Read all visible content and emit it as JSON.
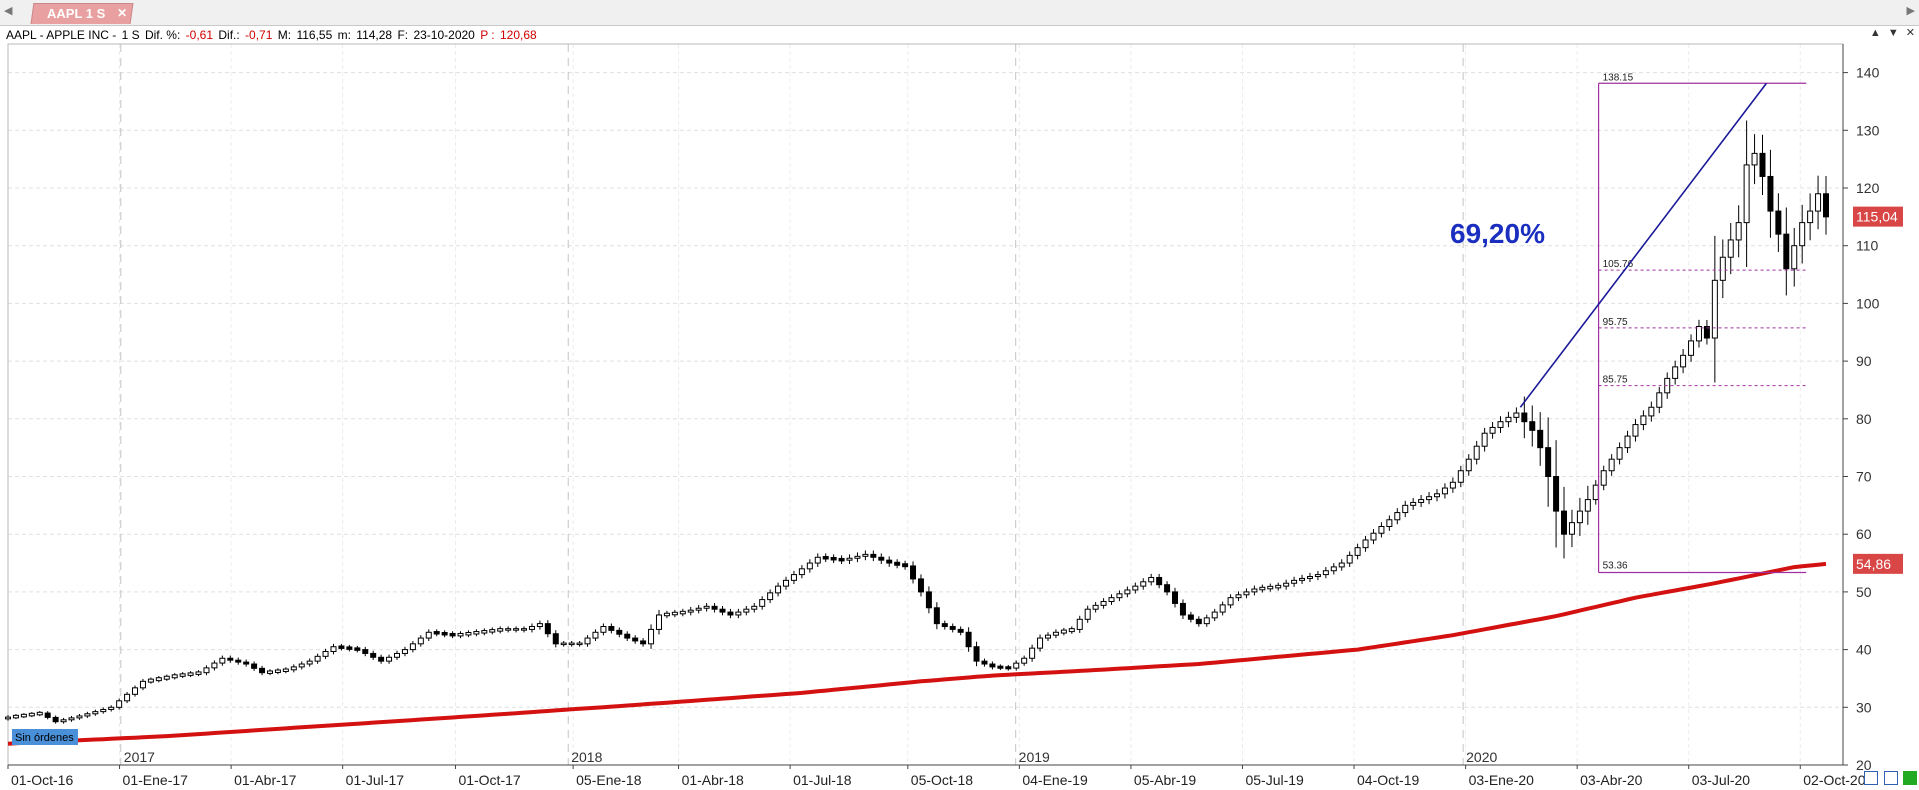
{
  "tab": {
    "label": "AAPL 1 S",
    "close": "✕"
  },
  "nav": {
    "left": "◀",
    "right": "▶"
  },
  "info": {
    "symbol": "AAPL - APPLE INC -",
    "interval": "1 S",
    "pct_label": "Dif. %:",
    "pct_value": "-0,61",
    "dif_label": "Dif.:",
    "dif_value": "-0,71",
    "max_label": "M:",
    "max_value": "116,55",
    "min_label": "m:",
    "min_value": "114,28",
    "date_label": "F:",
    "date_value": "23-10-2020",
    "price_label": "P :",
    "price_value": "120,68"
  },
  "window_controls": [
    "▲",
    "▼",
    "✕"
  ],
  "colors": {
    "line": "#d41111",
    "trend": "#1a1a99",
    "box": "#a030a0",
    "percent": "#1a2fbf",
    "badge": "#d94646"
  },
  "chart_data": {
    "type": "candlestick",
    "y_axis": {
      "min": 20,
      "max": 145,
      "ticks": [
        20,
        30,
        40,
        50,
        60,
        70,
        80,
        90,
        100,
        110,
        120,
        130,
        140
      ]
    },
    "x_axis": {
      "start": "2016-10-01",
      "end": "2020-10-23",
      "dates": [
        "2016-10-01",
        "2016-12-31",
        "2017-04-01",
        "2017-07-01",
        "2017-10-01",
        "2018-01-05",
        "2018-04-01",
        "2018-07-01",
        "2018-10-05",
        "2019-01-04",
        "2019-04-05",
        "2019-07-05",
        "2019-10-04",
        "2020-01-03",
        "2020-04-03",
        "2020-07-03",
        "2020-10-02"
      ]
    },
    "x_labels": [
      "01-Oct-16",
      "01-Ene-17",
      "01-Abr-17",
      "01-Jul-17",
      "01-Oct-17",
      "05-Ene-18",
      "01-Abr-18",
      "01-Jul-18",
      "05-Oct-18",
      "04-Ene-19",
      "05-Abr-19",
      "05-Jul-19",
      "04-Oct-19",
      "03-Ene-20",
      "03-Abr-20",
      "03-Jul-20",
      "02-Oct-20"
    ],
    "year_dates": [
      "2017-01-01",
      "2018-01-01",
      "2019-01-01",
      "2020-01-01"
    ],
    "year_labels": [
      "2017",
      "2018",
      "2019",
      "2020"
    ],
    "close_anchors": [
      [
        0,
        28.3
      ],
      [
        4,
        29.0
      ],
      [
        6,
        27.5
      ],
      [
        9,
        28.5
      ],
      [
        13,
        30.0
      ],
      [
        17,
        34.5
      ],
      [
        21,
        35.5
      ],
      [
        24,
        36.0
      ],
      [
        27,
        38.5
      ],
      [
        30,
        37.5
      ],
      [
        32,
        36.0
      ],
      [
        35,
        36.5
      ],
      [
        38,
        38.0
      ],
      [
        41,
        40.5
      ],
      [
        44,
        40.0
      ],
      [
        47,
        38.0
      ],
      [
        50,
        40.0
      ],
      [
        53,
        43.0
      ],
      [
        56,
        42.5
      ],
      [
        59,
        43.0
      ],
      [
        62,
        43.5
      ],
      [
        65,
        43.5
      ],
      [
        67,
        44.5
      ],
      [
        69,
        41.0
      ],
      [
        72,
        41.0
      ],
      [
        75,
        44.0
      ],
      [
        78,
        42.0
      ],
      [
        80,
        41.0
      ],
      [
        82,
        46.0
      ],
      [
        85,
        46.5
      ],
      [
        88,
        47.5
      ],
      [
        91,
        46.0
      ],
      [
        94,
        47.5
      ],
      [
        97,
        51.0
      ],
      [
        100,
        54.0
      ],
      [
        102,
        56.0
      ],
      [
        105,
        55.5
      ],
      [
        108,
        56.5
      ],
      [
        111,
        55.0
      ],
      [
        113,
        54.5
      ],
      [
        115,
        50.0
      ],
      [
        117,
        44.5
      ],
      [
        120,
        43.0
      ],
      [
        122,
        38.0
      ],
      [
        124,
        37.0
      ],
      [
        126,
        36.8
      ],
      [
        128,
        38.5
      ],
      [
        130,
        42.0
      ],
      [
        132,
        43.0
      ],
      [
        134,
        43.5
      ],
      [
        136,
        47.0
      ],
      [
        139,
        49.0
      ],
      [
        142,
        51.0
      ],
      [
        144,
        52.5
      ],
      [
        146,
        50.0
      ],
      [
        148,
        46.0
      ],
      [
        150,
        44.5
      ],
      [
        152,
        46.5
      ],
      [
        154,
        49.0
      ],
      [
        157,
        50.5
      ],
      [
        160,
        51.0
      ],
      [
        162,
        52.0
      ],
      [
        165,
        53.0
      ],
      [
        168,
        55.0
      ],
      [
        171,
        59.0
      ],
      [
        174,
        62.5
      ],
      [
        176,
        65.0
      ],
      [
        178,
        66.0
      ],
      [
        180,
        67.0
      ],
      [
        182,
        69.0
      ],
      [
        184,
        73.0
      ],
      [
        186,
        77.5
      ],
      [
        188,
        79.5
      ],
      [
        190,
        81.0
      ],
      [
        191,
        79.5
      ],
      [
        192,
        78.0
      ],
      [
        193,
        75.0
      ],
      [
        194,
        70.0
      ],
      [
        195,
        64.0
      ],
      [
        196,
        60.0
      ],
      [
        197,
        62.0
      ],
      [
        199,
        66.0
      ],
      [
        201,
        71.0
      ],
      [
        203,
        75.0
      ],
      [
        205,
        79.0
      ],
      [
        207,
        82.0
      ],
      [
        209,
        87.0
      ],
      [
        211,
        91.0
      ],
      [
        213,
        96.0
      ],
      [
        214,
        94.0
      ],
      [
        215,
        104.0
      ],
      [
        216,
        108.0
      ],
      [
        218,
        114.0
      ],
      [
        219,
        124.0
      ],
      [
        220,
        126.0
      ],
      [
        221,
        122.0
      ],
      [
        222,
        116.0
      ],
      [
        223,
        112.0
      ],
      [
        224,
        106.0
      ],
      [
        225,
        110.0
      ],
      [
        226,
        114.0
      ],
      [
        227,
        116.0
      ],
      [
        228,
        119.0
      ],
      [
        229,
        115.0
      ]
    ],
    "line_anchors": [
      [
        0,
        23.7
      ],
      [
        20,
        25.0
      ],
      [
        40,
        26.8
      ],
      [
        60,
        28.6
      ],
      [
        80,
        30.5
      ],
      [
        100,
        32.5
      ],
      [
        115,
        34.5
      ],
      [
        124,
        35.5
      ],
      [
        135,
        36.3
      ],
      [
        150,
        37.5
      ],
      [
        170,
        40.0
      ],
      [
        182,
        42.5
      ],
      [
        195,
        45.8
      ],
      [
        205,
        49.0
      ],
      [
        215,
        51.5
      ],
      [
        225,
        54.3
      ],
      [
        229,
        54.86
      ]
    ],
    "fib": {
      "high": 138.15,
      "low": 53.36,
      "levels": [
        105.76,
        95.75,
        85.75
      ],
      "labels": [
        "138.15",
        "105.76",
        "95.75",
        "85.75",
        "53.36"
      ]
    },
    "trendline": {
      "from": [
        190.5,
        82.0
      ],
      "to": [
        221.5,
        138.15
      ]
    },
    "percent_label": "69,20%",
    "price_badges": [
      "115,04",
      "54,86"
    ],
    "price_badge_values": [
      115.04,
      54.86
    ],
    "orders_label": "Sin órdenes"
  }
}
